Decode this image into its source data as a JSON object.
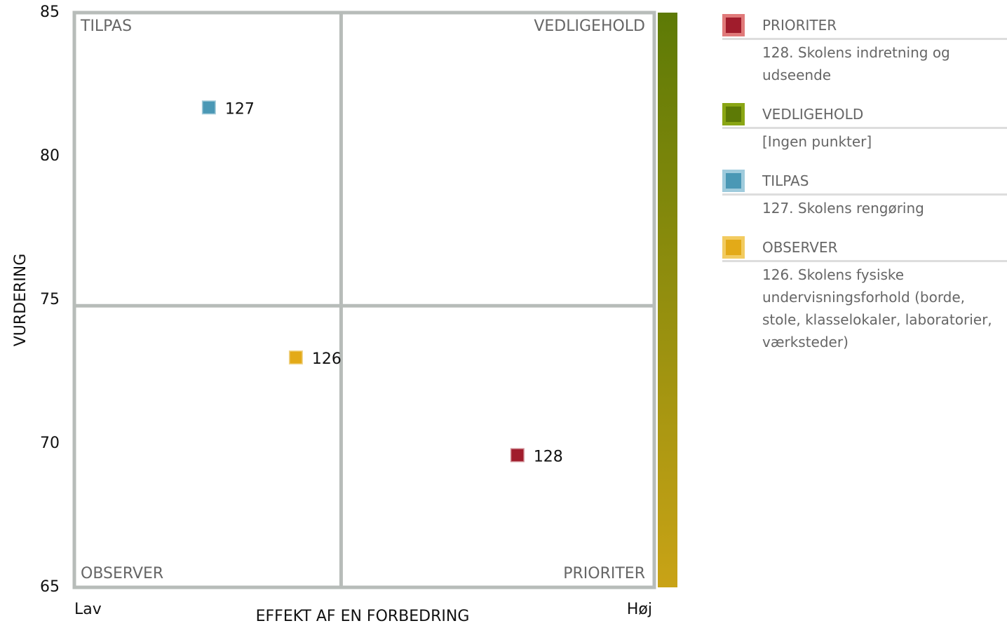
{
  "chart_data": {
    "type": "scatter",
    "x_label": "EFFEKT AF EN FORBEDRING",
    "y_label": "VURDERING",
    "xlim": [
      0,
      100
    ],
    "xticks": [
      {
        "value": 0,
        "label": "Lav"
      },
      {
        "value": 100,
        "label": "Høj"
      }
    ],
    "ylim": [
      65,
      85
    ],
    "yticks": [
      65,
      70,
      75,
      80,
      85
    ],
    "quadrant_split": {
      "x": 46,
      "y": 74.8
    },
    "quadrant_labels": {
      "top_left": "TILPAS",
      "top_right": "VEDLIGEHOLD",
      "bottom_left": "OBSERVER",
      "bottom_right": "PRIORITER"
    },
    "x": [
      23.2,
      38.2,
      76.4
    ],
    "values": [
      81.7,
      73.0,
      69.6
    ],
    "point_labels": [
      "127",
      "126",
      "128"
    ],
    "colors": [
      "#4a98b5",
      "#e3aa18",
      "#a01c2c"
    ],
    "legend": [
      {
        "name": "PRIORITER",
        "color": "#a01c2c",
        "border": "#e07a7a",
        "items": [
          "128. Skolens indretning og udseende"
        ]
      },
      {
        "name": "VEDLIGEHOLD",
        "color": "#5d7a06",
        "border": "#8aa614",
        "items": [
          "[Ingen punkter]"
        ]
      },
      {
        "name": "TILPAS",
        "color": "#4a98b5",
        "border": "#9fcbdc",
        "items": [
          "127. Skolens rengøring"
        ]
      },
      {
        "name": "OBSERVER",
        "color": "#e3aa18",
        "border": "#f2cb60",
        "items": [
          "126. Skolens fysiske undervisningsforhold (borde, stole, klasselokaler, laboratorier, værksteder)"
        ]
      }
    ]
  }
}
